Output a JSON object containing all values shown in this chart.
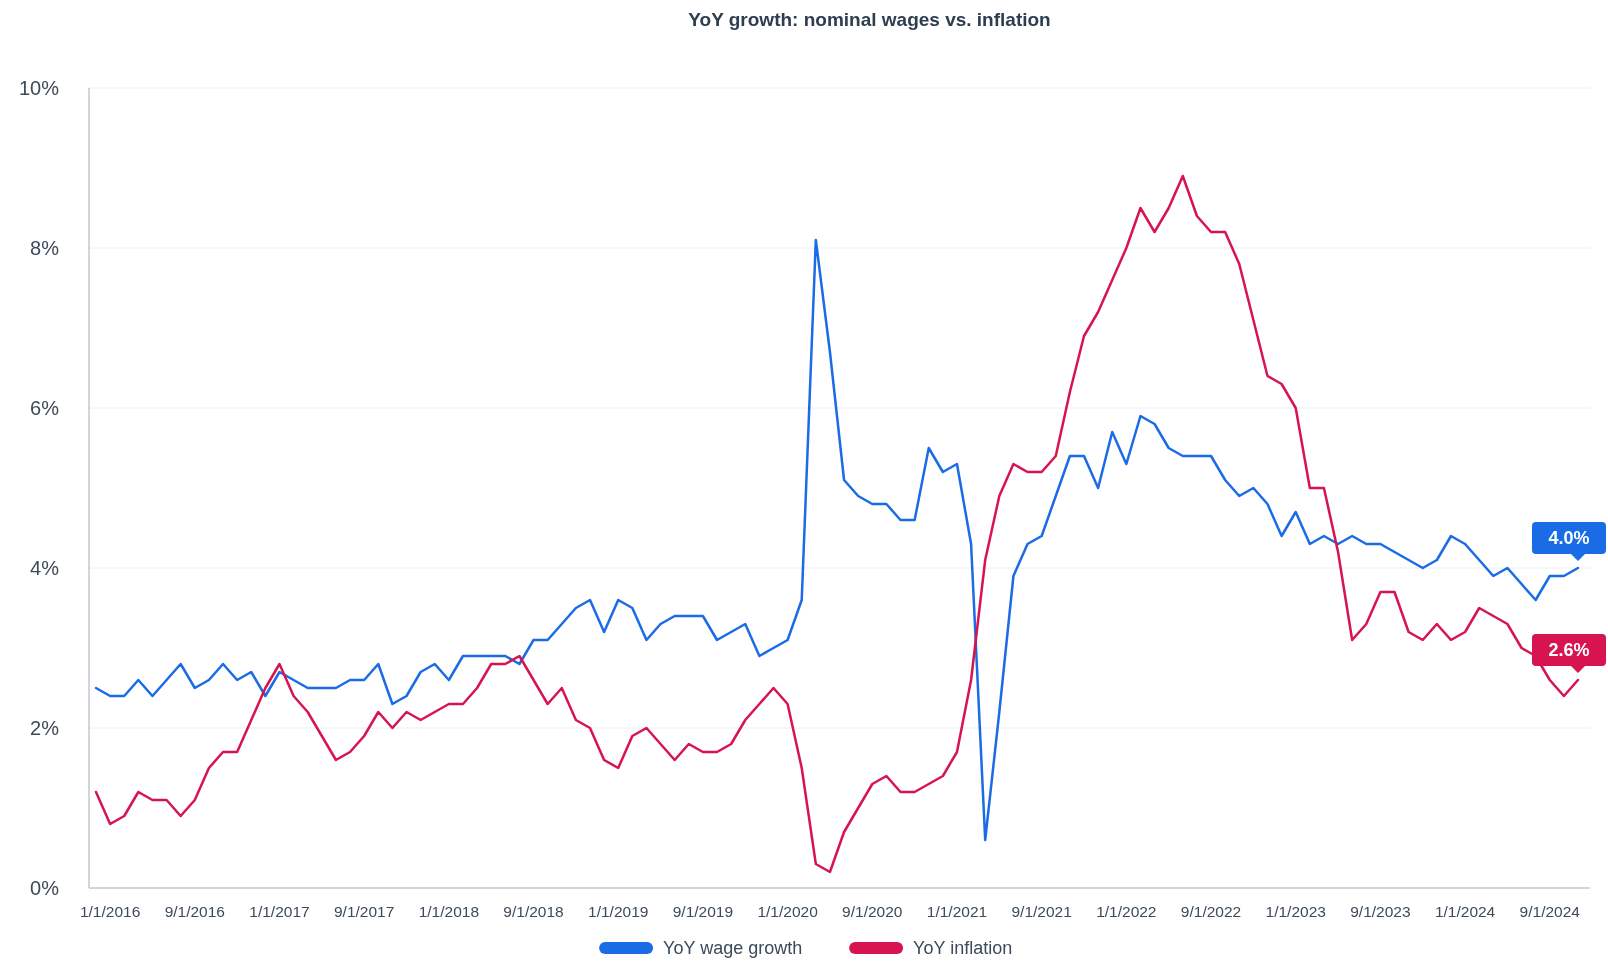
{
  "chart_data": {
    "type": "line",
    "title": "YoY growth: nominal wages vs. inflation",
    "categories": [
      null,
      "1/1/2016",
      null,
      null,
      null,
      null,
      null,
      "9/1/2016",
      null,
      null,
      null,
      null,
      null,
      "1/1/2017",
      null,
      null,
      null,
      null,
      null,
      "9/1/2017",
      null,
      null,
      null,
      null,
      null,
      "1/1/2018",
      null,
      null,
      null,
      null,
      null,
      "9/1/2018",
      null,
      null,
      null,
      null,
      null,
      "1/1/2019",
      null,
      null,
      null,
      null,
      null,
      "9/1/2019",
      null,
      null,
      null,
      null,
      null,
      "1/1/2020",
      null,
      null,
      null,
      null,
      null,
      "9/1/2020",
      null,
      null,
      null,
      null,
      null,
      "1/1/2021",
      null,
      null,
      null,
      null,
      null,
      "9/1/2021",
      null,
      null,
      null,
      null,
      null,
      "1/1/2022",
      null,
      null,
      null,
      null,
      null,
      "9/1/2022",
      null,
      null,
      null,
      null,
      null,
      "1/1/2023",
      null,
      null,
      null,
      null,
      null,
      "9/1/2023",
      null,
      null,
      null,
      null,
      null,
      "1/1/2024",
      null,
      null,
      null,
      null,
      null,
      "9/1/2024",
      null,
      null
    ],
    "series": [
      {
        "name": "YoY wage growth",
        "color": "#1a6be6",
        "values": [
          2.5,
          2.4,
          2.4,
          2.6,
          2.4,
          2.6,
          2.8,
          2.5,
          2.6,
          2.8,
          2.6,
          2.7,
          2.4,
          2.7,
          2.6,
          2.5,
          2.5,
          2.5,
          2.6,
          2.6,
          2.8,
          2.3,
          2.4,
          2.7,
          2.8,
          2.6,
          2.9,
          2.9,
          2.9,
          2.9,
          2.8,
          3.1,
          3.1,
          3.3,
          3.5,
          3.6,
          3.2,
          3.6,
          3.5,
          3.1,
          3.3,
          3.4,
          3.4,
          3.4,
          3.1,
          3.2,
          3.3,
          2.9,
          3.0,
          3.1,
          3.6,
          8.1,
          6.7,
          5.1,
          4.9,
          4.8,
          4.8,
          4.6,
          4.6,
          5.5,
          5.2,
          5.3,
          4.3,
          0.6,
          2.2,
          3.9,
          4.3,
          4.4,
          4.9,
          5.4,
          5.4,
          5.0,
          5.7,
          5.3,
          5.9,
          5.8,
          5.5,
          5.4,
          5.4,
          5.4,
          5.1,
          4.9,
          5.0,
          4.8,
          4.4,
          4.7,
          4.3,
          4.4,
          4.3,
          4.4,
          4.3,
          4.3,
          4.2,
          4.1,
          4.0,
          4.1,
          4.4,
          4.3,
          4.1,
          3.9,
          4.0,
          3.8,
          3.6,
          3.9,
          3.9,
          4.0
        ],
        "value_labels": [
          null,
          null,
          null,
          null,
          null,
          null,
          null,
          null,
          null,
          null,
          null,
          null,
          null,
          null,
          null,
          null,
          null,
          null,
          null,
          null,
          null,
          null,
          null,
          null,
          null,
          null,
          null,
          null,
          null,
          null,
          null,
          null,
          null,
          null,
          null,
          null,
          null,
          null,
          null,
          null,
          null,
          null,
          null,
          null,
          null,
          null,
          null,
          null,
          null,
          null,
          null,
          null,
          null,
          null,
          null,
          null,
          null,
          null,
          null,
          null,
          null,
          null,
          null,
          null,
          null,
          null,
          null,
          null,
          null,
          null,
          null,
          null,
          null,
          null,
          null,
          null,
          null,
          null,
          null,
          null,
          null,
          null,
          null,
          null,
          null,
          null,
          null,
          null,
          null,
          null,
          null,
          null,
          null,
          null,
          null,
          null,
          null,
          null,
          null,
          null,
          null,
          null,
          null,
          null,
          null,
          "4.0%"
        ]
      },
      {
        "name": "YoY inflation",
        "color": "#d7144f",
        "values": [
          1.2,
          0.8,
          0.9,
          1.2,
          1.1,
          1.1,
          0.9,
          1.1,
          1.5,
          1.7,
          1.7,
          2.1,
          2.5,
          2.8,
          2.4,
          2.2,
          1.9,
          1.6,
          1.7,
          1.9,
          2.2,
          2.0,
          2.2,
          2.1,
          2.2,
          2.3,
          2.3,
          2.5,
          2.8,
          2.8,
          2.9,
          2.6,
          2.3,
          2.5,
          2.1,
          2.0,
          1.6,
          1.5,
          1.9,
          2.0,
          1.8,
          1.6,
          1.8,
          1.7,
          1.7,
          1.8,
          2.1,
          2.3,
          2.5,
          2.3,
          1.5,
          0.3,
          0.2,
          0.7,
          1.0,
          1.3,
          1.4,
          1.2,
          1.2,
          1.3,
          1.4,
          1.7,
          2.6,
          4.1,
          4.9,
          5.3,
          5.2,
          5.2,
          5.4,
          6.2,
          6.9,
          7.2,
          7.6,
          8.0,
          8.5,
          8.2,
          8.5,
          8.9,
          8.4,
          8.2,
          8.2,
          7.8,
          7.1,
          6.4,
          6.3,
          6.0,
          5.0,
          5.0,
          4.2,
          3.1,
          3.3,
          3.7,
          3.7,
          3.2,
          3.1,
          3.3,
          3.1,
          3.2,
          3.5,
          3.4,
          3.3,
          3.0,
          2.9,
          2.6,
          2.4,
          2.6
        ],
        "value_labels": [
          null,
          null,
          null,
          null,
          null,
          null,
          null,
          null,
          null,
          null,
          null,
          null,
          null,
          null,
          null,
          null,
          null,
          null,
          null,
          null,
          null,
          null,
          null,
          null,
          null,
          null,
          null,
          null,
          null,
          null,
          null,
          null,
          null,
          null,
          null,
          null,
          null,
          null,
          null,
          null,
          null,
          null,
          null,
          null,
          null,
          null,
          null,
          null,
          null,
          null,
          null,
          null,
          null,
          null,
          null,
          null,
          null,
          null,
          null,
          null,
          null,
          null,
          null,
          null,
          null,
          null,
          null,
          null,
          null,
          null,
          null,
          null,
          null,
          null,
          null,
          null,
          null,
          null,
          null,
          null,
          null,
          null,
          null,
          null,
          null,
          null,
          null,
          null,
          null,
          null,
          null,
          null,
          null,
          null,
          null,
          null,
          null,
          null,
          null,
          null,
          null,
          null,
          null,
          null,
          null,
          "2.6%"
        ]
      }
    ],
    "ylim": [
      0,
      10
    ],
    "yticks": [
      {
        "value": 0,
        "label": "0%"
      },
      {
        "value": 2,
        "label": "2%"
      },
      {
        "value": 4,
        "label": "4%"
      },
      {
        "value": 6,
        "label": "6%"
      },
      {
        "value": 8,
        "label": "8%"
      },
      {
        "value": 10,
        "label": "10%"
      }
    ],
    "grid": "y",
    "legend": "bottom",
    "marker": "none",
    "line_style": "solid"
  }
}
